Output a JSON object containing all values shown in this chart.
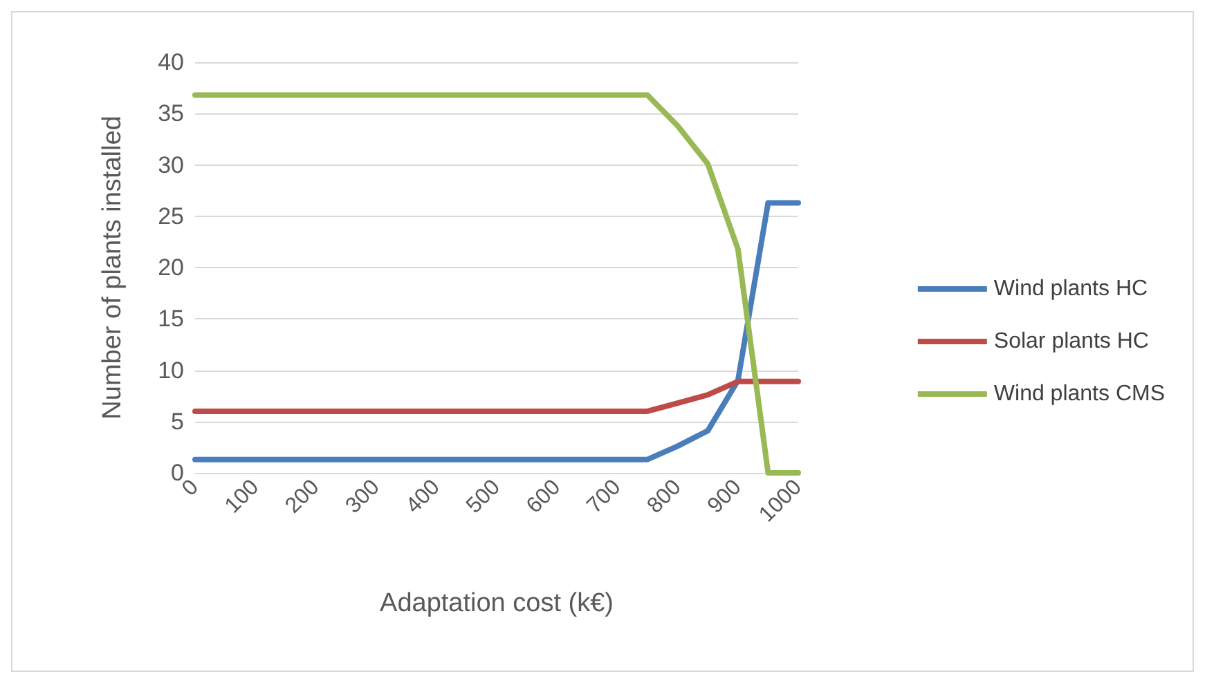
{
  "chart_data": {
    "type": "line",
    "xlabel": "Adaptation cost (k€)",
    "ylabel": "Number of plants installed",
    "categories": [
      "0",
      null,
      "100",
      null,
      "200",
      null,
      "300",
      null,
      "400",
      null,
      "500",
      null,
      "600",
      null,
      "700",
      null,
      "800",
      null,
      "900",
      null,
      "1000"
    ],
    "series": [
      {
        "name": "Wind plants HC",
        "color": "#4a7ebb",
        "values": [
          1.3,
          1.3,
          1.3,
          1.3,
          1.3,
          1.3,
          1.3,
          1.3,
          1.3,
          1.3,
          1.3,
          1.3,
          1.3,
          1.3,
          1.3,
          1.3,
          2.6,
          4.1,
          9,
          26.3,
          26.3
        ]
      },
      {
        "name": "Solar plants HC",
        "color": "#be4b48",
        "values": [
          6,
          6,
          6,
          6,
          6,
          6,
          6,
          6,
          6,
          6,
          6,
          6,
          6,
          6,
          6,
          6,
          6.8,
          7.6,
          8.9,
          8.9,
          8.9
        ]
      },
      {
        "name": "Wind plants CMS",
        "color": "#98b954",
        "values": [
          36.8,
          36.8,
          36.8,
          36.8,
          36.8,
          36.8,
          36.8,
          36.8,
          36.8,
          36.8,
          36.8,
          36.8,
          36.8,
          36.8,
          36.8,
          36.8,
          33.8,
          30.1,
          21.8,
          0,
          0
        ]
      }
    ],
    "ylim": [
      0,
      40
    ],
    "yticks": [
      0,
      5,
      10,
      15,
      20,
      25,
      30,
      35,
      40
    ],
    "grid": "y",
    "legend": "right",
    "marker": "none",
    "line_style": "solid"
  }
}
